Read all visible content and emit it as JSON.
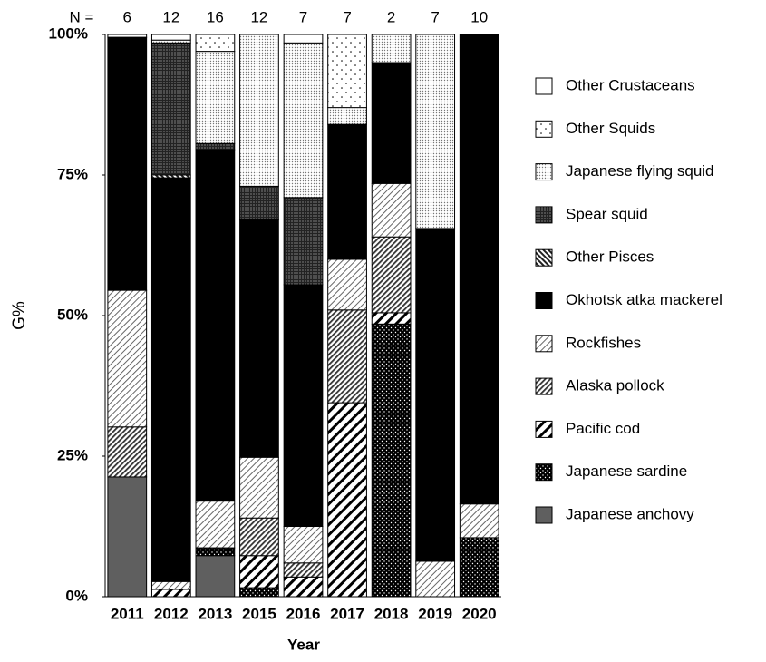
{
  "chart_data": {
    "type": "stacked_bar",
    "ylabel": "G%",
    "xlabel": "Year",
    "n_label": "N =",
    "n_values": [
      6,
      12,
      16,
      12,
      7,
      7,
      2,
      7,
      10
    ],
    "categories": [
      "2011",
      "2012",
      "2013",
      "2015",
      "2016",
      "2017",
      "2018",
      "2019",
      "2020"
    ],
    "ylim": [
      0,
      100
    ],
    "yticks": [
      {
        "value": 0,
        "label": "0%"
      },
      {
        "value": 25,
        "label": "25%"
      },
      {
        "value": 50,
        "label": "50%"
      },
      {
        "value": 75,
        "label": "75%"
      },
      {
        "value": 100,
        "label": "100%"
      }
    ],
    "legend": "right",
    "series": [
      {
        "name": "Japanese anchovy",
        "color": "#5f5f5f",
        "values": [
          21.3,
          0,
          7.3,
          0,
          0,
          0,
          0,
          0,
          0
        ]
      },
      {
        "name": "Japanese sardine",
        "color": "#000000",
        "values": [
          0,
          0,
          1.4,
          1.6,
          0,
          0,
          48.5,
          0,
          10.5
        ]
      },
      {
        "name": "Pacific cod",
        "color": "#ffffff",
        "values": [
          0,
          1.3,
          0,
          5.7,
          3.5,
          34.5,
          2,
          0,
          0
        ]
      },
      {
        "name": "Alaska pollock",
        "color": "#555555",
        "values": [
          8.9,
          0,
          0,
          6.7,
          2.5,
          16.5,
          13.5,
          0,
          0
        ]
      },
      {
        "name": "Rockfishes",
        "color": "#cccccc",
        "values": [
          24.3,
          1.4,
          8.3,
          10.8,
          6.5,
          9,
          9.5,
          6.3,
          6
        ]
      },
      {
        "name": "Okhotsk atka mackerel",
        "color": "#000000",
        "values": [
          45,
          71.8,
          62.5,
          42.2,
          43,
          24,
          21.5,
          59.2,
          83.5
        ]
      },
      {
        "name": "Other Pisces",
        "color": "#444444",
        "values": [
          0,
          0.5,
          0,
          0,
          0,
          0,
          0,
          0,
          0
        ]
      },
      {
        "name": "Spear squid",
        "color": "#333333",
        "values": [
          0,
          23.5,
          1.1,
          6,
          15.5,
          0,
          0,
          0,
          0
        ]
      },
      {
        "name": "Japanese flying squid",
        "color": "#bbbbbb",
        "values": [
          0,
          0.5,
          16.4,
          27,
          27.5,
          3,
          5,
          34.5,
          0
        ]
      },
      {
        "name": "Other Squids",
        "color": "#ffffff",
        "values": [
          0,
          0,
          3,
          0,
          0,
          13,
          0,
          0,
          0
        ]
      },
      {
        "name": "Other Crustaceans",
        "color": "#ffffff",
        "values": [
          0.5,
          1,
          0,
          0,
          1.5,
          0,
          0,
          0,
          0
        ]
      }
    ]
  }
}
